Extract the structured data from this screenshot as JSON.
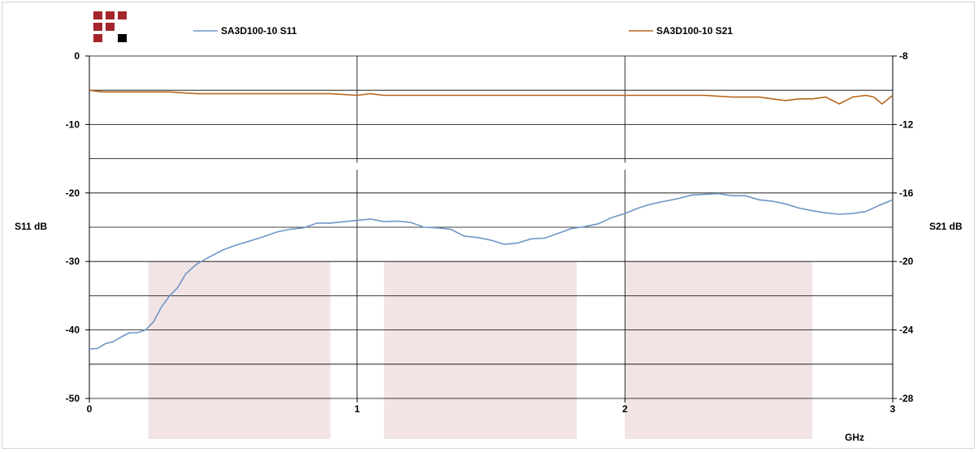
{
  "chart_data": {
    "type": "line",
    "xlabel": "GHz",
    "ylabel": "S11 dB",
    "y2label": "S21 dB",
    "xlim": [
      0,
      3
    ],
    "ylim": [
      -50,
      0
    ],
    "y2lim": [
      -28,
      -8
    ],
    "xticks": [
      "0",
      "1",
      "2",
      "3"
    ],
    "yticks": [
      "0",
      "-10",
      "-20",
      "-30",
      "-40",
      "-50"
    ],
    "y2ticks": [
      "-8",
      "-12",
      "-16",
      "-20",
      "-24",
      "-28"
    ],
    "legend_position": "top",
    "grid": true,
    "logo_colors": [
      "#a4262c",
      "#000000"
    ],
    "band_color": "#f2e4e4",
    "bands": [
      {
        "x": [
          0.22,
          0.9
        ],
        "y": [
          -50,
          -30
        ]
      },
      {
        "x": [
          1.1,
          1.82
        ],
        "y": [
          -50,
          -30
        ]
      },
      {
        "x": [
          2.0,
          2.7
        ],
        "y": [
          -50,
          -30
        ]
      }
    ],
    "series": [
      {
        "name": "SA3D100-10 S11",
        "axis": "left",
        "color": "#6f95c7",
        "x": [
          0,
          0.03,
          0.06,
          0.09,
          0.12,
          0.15,
          0.18,
          0.21,
          0.24,
          0.27,
          0.3,
          0.33,
          0.36,
          0.4,
          0.45,
          0.5,
          0.55,
          0.6,
          0.65,
          0.7,
          0.75,
          0.8,
          0.85,
          0.9,
          1.0,
          1.05,
          1.1,
          1.15,
          1.2,
          1.25,
          1.3,
          1.35,
          1.4,
          1.45,
          1.5,
          1.55,
          1.6,
          1.65,
          1.7,
          1.75,
          1.8,
          1.85,
          1.9,
          1.95,
          2.0,
          2.05,
          2.1,
          2.15,
          2.2,
          2.25,
          2.3,
          2.35,
          2.4,
          2.45,
          2.5,
          2.55,
          2.6,
          2.65,
          2.7,
          2.75,
          2.8,
          2.85,
          2.9,
          2.95,
          3.0
        ],
        "y": [
          -42.8,
          -42.7,
          -42.0,
          -41.7,
          -41.0,
          -40.4,
          -40.4,
          -40.0,
          -38.8,
          -36.6,
          -35.0,
          -33.8,
          -31.8,
          -30.4,
          -29.3,
          -28.3,
          -27.6,
          -27.0,
          -26.4,
          -25.7,
          -25.3,
          -25.1,
          -24.4,
          -24.4,
          -24.0,
          -23.8,
          -24.2,
          -24.1,
          -24.3,
          -25.0,
          -25.1,
          -25.3,
          -26.3,
          -26.5,
          -26.9,
          -27.5,
          -27.3,
          -26.7,
          -26.6,
          -25.9,
          -25.2,
          -24.9,
          -24.5,
          -23.6,
          -23.0,
          -22.2,
          -21.6,
          -21.2,
          -20.8,
          -20.3,
          -20.2,
          -20.1,
          -20.4,
          -20.4,
          -21.0,
          -21.2,
          -21.6,
          -22.2,
          -22.6,
          -22.9,
          -23.1,
          -23.0,
          -22.7,
          -21.8,
          -21.0
        ]
      },
      {
        "name": "SA3D100-10 S21",
        "axis": "right",
        "color": "#b8651b",
        "x": [
          0,
          0.05,
          0.1,
          0.2,
          0.3,
          0.4,
          0.5,
          0.6,
          0.7,
          0.8,
          0.9,
          1.0,
          1.05,
          1.1,
          1.2,
          1.3,
          1.4,
          1.5,
          1.6,
          1.7,
          1.8,
          1.9,
          2.0,
          2.1,
          2.2,
          2.3,
          2.4,
          2.45,
          2.5,
          2.55,
          2.6,
          2.65,
          2.7,
          2.75,
          2.8,
          2.85,
          2.9,
          2.93,
          2.96,
          3.0
        ],
        "y": [
          -10.0,
          -10.1,
          -10.1,
          -10.1,
          -10.1,
          -10.2,
          -10.2,
          -10.2,
          -10.2,
          -10.2,
          -10.2,
          -10.3,
          -10.2,
          -10.3,
          -10.3,
          -10.3,
          -10.3,
          -10.3,
          -10.3,
          -10.3,
          -10.3,
          -10.3,
          -10.3,
          -10.3,
          -10.3,
          -10.3,
          -10.4,
          -10.4,
          -10.4,
          -10.5,
          -10.6,
          -10.5,
          -10.5,
          -10.4,
          -10.8,
          -10.4,
          -10.3,
          -10.4,
          -10.8,
          -10.3
        ]
      }
    ]
  }
}
